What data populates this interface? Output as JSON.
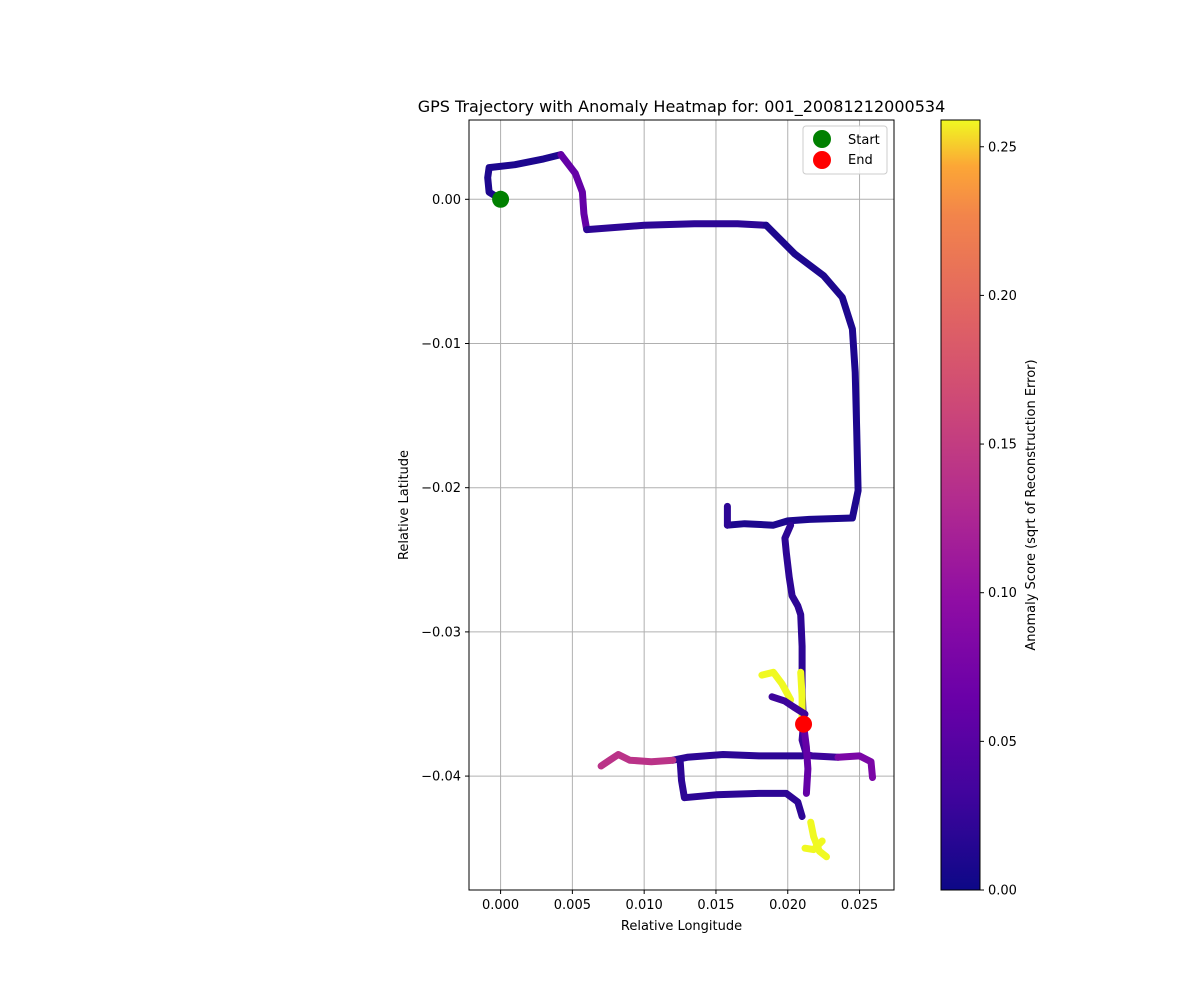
{
  "chart_data": {
    "type": "scatter",
    "title": "GPS Trajectory with Anomaly Heatmap for: 001_20081212000534",
    "xlabel": "Relative Longitude",
    "ylabel": "Relative Latitude",
    "xlim": [
      -0.0022,
      0.0274
    ],
    "ylim": [
      -0.0479,
      0.0055
    ],
    "xticks": [
      0.0,
      0.005,
      0.01,
      0.015,
      0.02,
      0.025
    ],
    "xtick_labels": [
      "0.000",
      "0.005",
      "0.010",
      "0.015",
      "0.020",
      "0.025"
    ],
    "yticks": [
      0.0,
      -0.01,
      -0.02,
      -0.03,
      -0.04
    ],
    "ytick_labels": [
      "0.00",
      "−0.01",
      "−0.02",
      "−0.03",
      "−0.04"
    ],
    "grid": true,
    "legend_placement": "top-right",
    "legend": [
      {
        "label": "Start",
        "color": "#008000"
      },
      {
        "label": "End",
        "color": "#ff0000"
      }
    ],
    "start_point": {
      "x": 0.0,
      "y": 0.0
    },
    "end_point": {
      "x": 0.0211,
      "y": -0.0364
    },
    "colorbar": {
      "label": "Anomaly Score (sqrt of Reconstruction Error)",
      "colormap": "plasma",
      "range": [
        0.0,
        0.259
      ],
      "ticks": [
        0.0,
        0.05,
        0.1,
        0.15,
        0.2,
        0.25
      ],
      "tick_labels": [
        "0.00",
        "0.05",
        "0.10",
        "0.15",
        "0.20",
        "0.25"
      ]
    },
    "segments": [
      {
        "score": 0.01,
        "points": [
          [
            0.0,
            0.0
          ],
          [
            -0.0008,
            0.0005
          ],
          [
            -0.0009,
            0.0015
          ],
          [
            -0.0008,
            0.0022
          ],
          [
            0.001,
            0.0024
          ],
          [
            0.003,
            0.0028
          ],
          [
            0.0042,
            0.0031
          ]
        ]
      },
      {
        "score": 0.06,
        "points": [
          [
            0.0042,
            0.0031
          ],
          [
            0.0052,
            0.0018
          ],
          [
            0.0057,
            0.0005
          ],
          [
            0.0058,
            -0.001
          ],
          [
            0.006,
            -0.0021
          ]
        ]
      },
      {
        "score": 0.02,
        "points": [
          [
            0.006,
            -0.0021
          ],
          [
            0.01,
            -0.0018
          ],
          [
            0.0135,
            -0.0017
          ],
          [
            0.0165,
            -0.0017
          ],
          [
            0.0185,
            -0.0018
          ]
        ]
      },
      {
        "score": 0.01,
        "points": [
          [
            0.0185,
            -0.0018
          ],
          [
            0.0205,
            -0.0038
          ],
          [
            0.0225,
            -0.0053
          ],
          [
            0.0238,
            -0.0068
          ],
          [
            0.0245,
            -0.009
          ],
          [
            0.0247,
            -0.012
          ],
          [
            0.0248,
            -0.016
          ],
          [
            0.0249,
            -0.0202
          ],
          [
            0.0245,
            -0.0221
          ],
          [
            0.0215,
            -0.0222
          ],
          [
            0.02,
            -0.0223
          ],
          [
            0.019,
            -0.0226
          ],
          [
            0.017,
            -0.0225
          ],
          [
            0.0158,
            -0.0226
          ]
        ]
      },
      {
        "score": 0.02,
        "points": [
          [
            0.0158,
            -0.0213
          ],
          [
            0.0158,
            -0.0226
          ]
        ]
      },
      {
        "score": 0.02,
        "points": [
          [
            0.0202,
            -0.0226
          ],
          [
            0.0198,
            -0.0235
          ],
          [
            0.0199,
            -0.0245
          ],
          [
            0.0201,
            -0.0262
          ],
          [
            0.0203,
            -0.0275
          ],
          [
            0.0207,
            -0.0282
          ],
          [
            0.0209,
            -0.0288
          ],
          [
            0.021,
            -0.031
          ],
          [
            0.021,
            -0.034
          ],
          [
            0.0211,
            -0.0364
          ]
        ]
      },
      {
        "score": 0.26,
        "points": [
          [
            0.0209,
            -0.0328
          ],
          [
            0.021,
            -0.0345
          ],
          [
            0.021,
            -0.036
          ]
        ]
      },
      {
        "score": 0.26,
        "points": [
          [
            0.0182,
            -0.033
          ],
          [
            0.019,
            -0.0328
          ],
          [
            0.0196,
            -0.0336
          ],
          [
            0.0202,
            -0.0347
          ]
        ]
      },
      {
        "score": 0.03,
        "points": [
          [
            0.0189,
            -0.0345
          ],
          [
            0.0198,
            -0.0348
          ],
          [
            0.0204,
            -0.0352
          ],
          [
            0.0212,
            -0.0357
          ]
        ]
      },
      {
        "score": 0.03,
        "points": [
          [
            0.0211,
            -0.0364
          ],
          [
            0.021,
            -0.0375
          ],
          [
            0.0213,
            -0.0385
          ],
          [
            0.0217,
            -0.0386
          ],
          [
            0.0235,
            -0.0387
          ]
        ]
      },
      {
        "score": 0.08,
        "points": [
          [
            0.0235,
            -0.0387
          ],
          [
            0.025,
            -0.0386
          ],
          [
            0.0258,
            -0.039
          ],
          [
            0.0259,
            -0.0401
          ]
        ]
      },
      {
        "score": 0.02,
        "points": [
          [
            0.021,
            -0.0386
          ],
          [
            0.018,
            -0.0386
          ],
          [
            0.0155,
            -0.0385
          ],
          [
            0.013,
            -0.0387
          ],
          [
            0.012,
            -0.0389
          ]
        ]
      },
      {
        "score": 0.14,
        "points": [
          [
            0.012,
            -0.0389
          ],
          [
            0.0105,
            -0.039
          ],
          [
            0.009,
            -0.0389
          ],
          [
            0.0082,
            -0.0385
          ],
          [
            0.0076,
            -0.0389
          ],
          [
            0.007,
            -0.0393
          ]
        ]
      },
      {
        "score": 0.02,
        "points": [
          [
            0.0125,
            -0.0389
          ],
          [
            0.0126,
            -0.0403
          ],
          [
            0.0128,
            -0.0415
          ],
          [
            0.015,
            -0.0413
          ],
          [
            0.018,
            -0.0412
          ],
          [
            0.0199,
            -0.0412
          ],
          [
            0.0207,
            -0.0418
          ],
          [
            0.021,
            -0.0428
          ]
        ]
      },
      {
        "score": 0.06,
        "points": [
          [
            0.0211,
            -0.0364
          ],
          [
            0.0213,
            -0.038
          ],
          [
            0.0214,
            -0.0395
          ],
          [
            0.0213,
            -0.0412
          ]
        ]
      },
      {
        "score": 0.26,
        "points": [
          [
            0.0216,
            -0.0432
          ],
          [
            0.0218,
            -0.0442
          ],
          [
            0.0222,
            -0.0452
          ],
          [
            0.0227,
            -0.0456
          ]
        ]
      },
      {
        "score": 0.26,
        "points": [
          [
            0.0212,
            -0.045
          ],
          [
            0.0218,
            -0.0451
          ],
          [
            0.0224,
            -0.0445
          ]
        ]
      }
    ]
  }
}
